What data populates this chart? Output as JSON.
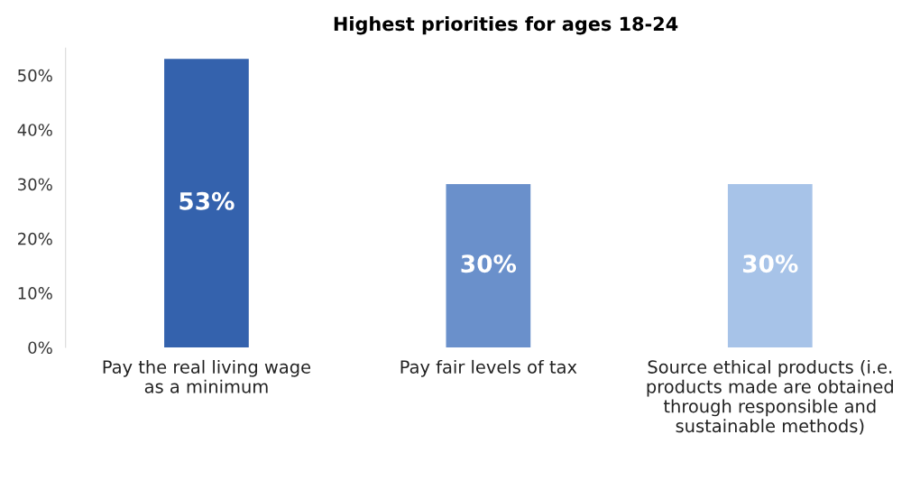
{
  "chart_data": {
    "type": "bar",
    "title": "Highest priorities for ages 18-24",
    "categories": [
      "Pay the real living wage\nas a minimum",
      "Pay fair levels of tax",
      "Source ethical products (i.e.\nproducts made are obtained\nthrough responsible and\nsustainable methods)"
    ],
    "values": [
      53,
      30,
      30
    ],
    "colors": [
      "#3462ad",
      "#6a90cb",
      "#a7c3e8"
    ],
    "value_labels": [
      "53%",
      "30%",
      "30%"
    ],
    "ylim": [
      0,
      55
    ],
    "yticks": [
      {
        "value": 0,
        "label": "0%"
      },
      {
        "value": 10,
        "label": "10%"
      },
      {
        "value": 20,
        "label": "20%"
      },
      {
        "value": 30,
        "label": "30%"
      },
      {
        "value": 40,
        "label": "40%"
      },
      {
        "value": 50,
        "label": "50%"
      }
    ],
    "grid": false,
    "legend": false
  }
}
